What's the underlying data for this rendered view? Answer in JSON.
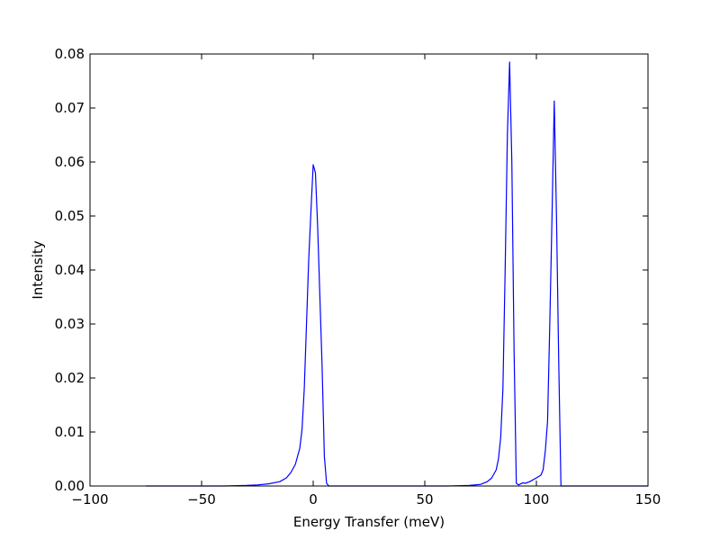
{
  "chart_data": {
    "type": "line",
    "title": "",
    "xlabel": "Energy Transfer (meV)",
    "ylabel": "Intensity",
    "xlim": [
      -100,
      150
    ],
    "ylim": [
      0,
      0.08
    ],
    "grid": false,
    "x_ticks": [
      -100,
      -50,
      0,
      50,
      100,
      150
    ],
    "x_tick_labels": [
      "−100",
      "−50",
      "0",
      "50",
      "100",
      "150"
    ],
    "y_ticks": [
      0.0,
      0.01,
      0.02,
      0.03,
      0.04,
      0.05,
      0.06,
      0.07,
      0.08
    ],
    "y_tick_labels": [
      "0.00",
      "0.01",
      "0.02",
      "0.03",
      "0.04",
      "0.05",
      "0.06",
      "0.07",
      "0.08"
    ],
    "series": [
      {
        "color": "#0000ff",
        "points": [
          [
            -75,
            0.0
          ],
          [
            -40,
            0.0
          ],
          [
            -30,
            0.0001
          ],
          [
            -25,
            0.0002
          ],
          [
            -20,
            0.0004
          ],
          [
            -15,
            0.0008
          ],
          [
            -12,
            0.0015
          ],
          [
            -10,
            0.0025
          ],
          [
            -8,
            0.004
          ],
          [
            -6,
            0.007
          ],
          [
            -5,
            0.0105
          ],
          [
            -4,
            0.018
          ],
          [
            -3,
            0.03
          ],
          [
            -2,
            0.042
          ],
          [
            -1,
            0.051
          ],
          [
            0,
            0.0595
          ],
          [
            1,
            0.058
          ],
          [
            2,
            0.048
          ],
          [
            3,
            0.035
          ],
          [
            4,
            0.022
          ],
          [
            5,
            0.0055
          ],
          [
            6,
            0.0005
          ],
          [
            7,
            0.0
          ],
          [
            60,
            0.0
          ],
          [
            70,
            0.0001
          ],
          [
            75,
            0.0003
          ],
          [
            78,
            0.0008
          ],
          [
            80,
            0.0015
          ],
          [
            82,
            0.003
          ],
          [
            83,
            0.005
          ],
          [
            84,
            0.009
          ],
          [
            85,
            0.018
          ],
          [
            86,
            0.04
          ],
          [
            87,
            0.065
          ],
          [
            88,
            0.0785
          ],
          [
            89,
            0.06
          ],
          [
            90,
            0.025
          ],
          [
            91,
            0.0005
          ],
          [
            92,
            0.0002
          ],
          [
            93,
            0.0004
          ],
          [
            94,
            0.0006
          ],
          [
            95,
            0.0005
          ],
          [
            97,
            0.0008
          ],
          [
            100,
            0.0015
          ],
          [
            102,
            0.002
          ],
          [
            103,
            0.003
          ],
          [
            104,
            0.0065
          ],
          [
            105,
            0.012
          ],
          [
            106,
            0.03
          ],
          [
            107,
            0.05
          ],
          [
            108,
            0.0713
          ],
          [
            109,
            0.05
          ],
          [
            110,
            0.023
          ],
          [
            111,
            0.0
          ],
          [
            150,
            0.0
          ]
        ]
      }
    ]
  }
}
